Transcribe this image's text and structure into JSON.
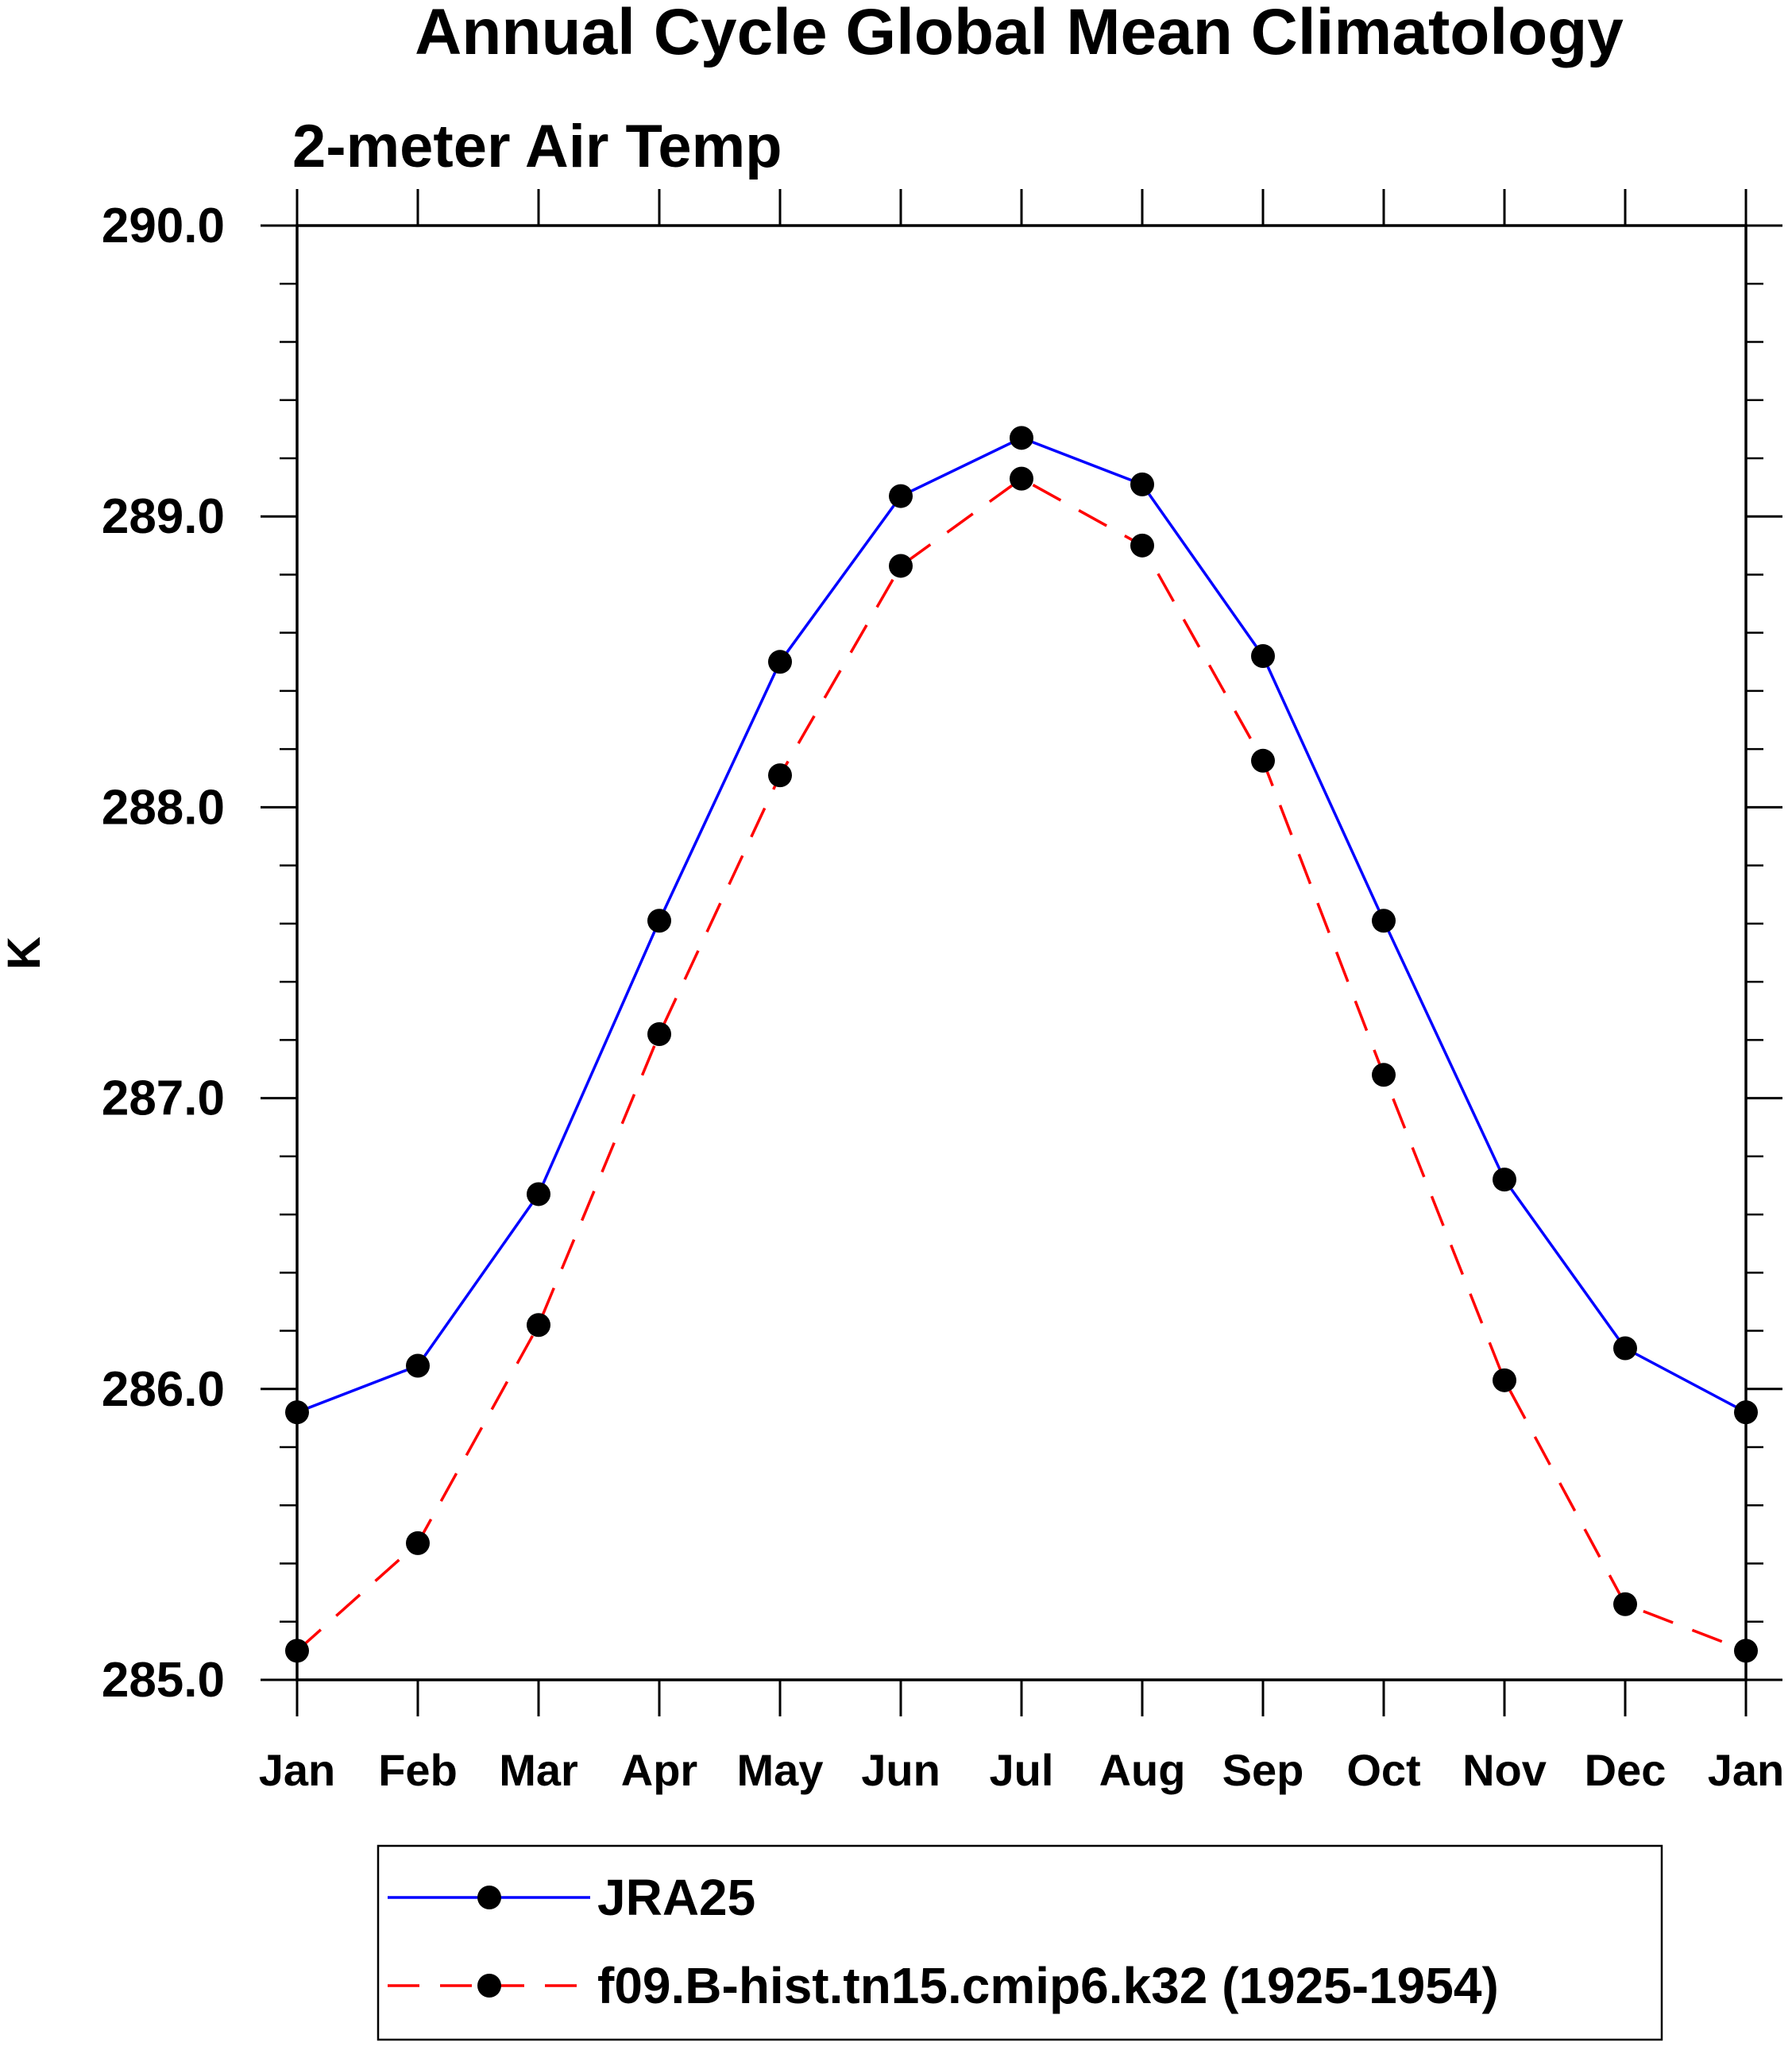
{
  "chart_data": {
    "type": "line",
    "title": "Annual Cycle Global Mean Climatology",
    "subtitle": "2-meter Air Temp",
    "xlabel": "",
    "ylabel": "K",
    "categories": [
      "Jan",
      "Feb",
      "Mar",
      "Apr",
      "May",
      "Jun",
      "Jul",
      "Aug",
      "Sep",
      "Oct",
      "Nov",
      "Dec",
      "Jan"
    ],
    "ylim": [
      285.0,
      290.0
    ],
    "yticks": [
      "285.0",
      "286.0",
      "287.0",
      "288.0",
      "289.0",
      "290.0"
    ],
    "grid": false,
    "legend_position": "bottom",
    "series": [
      {
        "name": "JRA25",
        "color": "#0000ff",
        "dash": "solid",
        "marker": "filled-circle",
        "values": [
          285.92,
          286.08,
          286.67,
          287.61,
          288.5,
          289.07,
          289.27,
          289.11,
          288.52,
          287.61,
          286.72,
          286.14,
          285.92
        ]
      },
      {
        "name": "f09.B-hist.tn15.cmip6.k32 (1925-1954)",
        "color": "#ff0000",
        "dash": "dashed",
        "marker": "filled-circle",
        "values": [
          285.1,
          285.47,
          286.22,
          287.22,
          288.11,
          288.83,
          289.13,
          288.9,
          288.16,
          287.08,
          286.03,
          285.26,
          285.1
        ]
      }
    ]
  }
}
